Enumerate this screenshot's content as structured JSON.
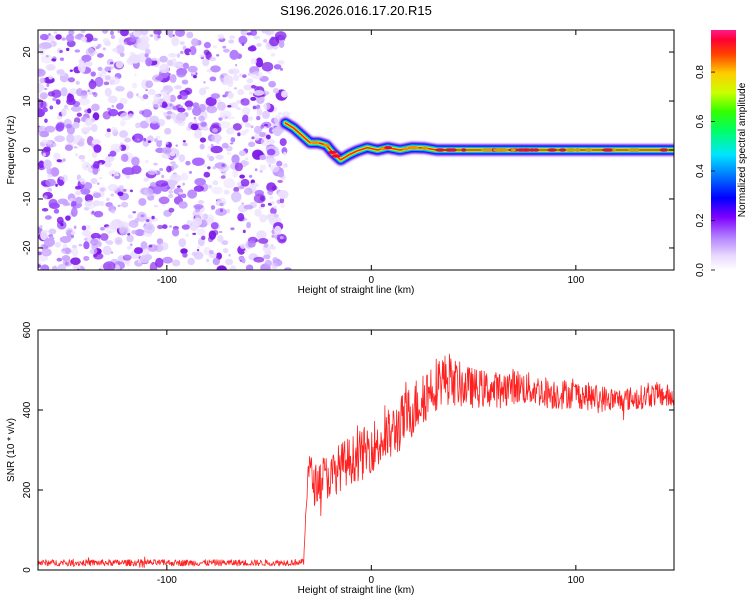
{
  "title": "S196.2026.016.17.20.R15",
  "chart_data": [
    {
      "type": "heatmap",
      "name": "spectrogram",
      "xlabel": "Height of straight line (km)",
      "ylabel": "Frequency (Hz)",
      "xlim": [
        -163,
        148
      ],
      "ylim": [
        -24.5,
        24.5
      ],
      "xticks": [
        -100,
        0,
        100
      ],
      "yticks": [
        -20,
        -10,
        0,
        10,
        20
      ],
      "noise_region_x": [
        -163,
        -42
      ],
      "ridge": [
        {
          "x": -42,
          "y": 5.5
        },
        {
          "x": -38,
          "y": 4.5
        },
        {
          "x": -34,
          "y": 3.0
        },
        {
          "x": -30,
          "y": 1.5
        },
        {
          "x": -26,
          "y": 1.5
        },
        {
          "x": -22,
          "y": 1.0
        },
        {
          "x": -19,
          "y": -0.5
        },
        {
          "x": -15,
          "y": -2.0
        },
        {
          "x": -11,
          "y": -1.0
        },
        {
          "x": -7,
          "y": -0.2
        },
        {
          "x": -2,
          "y": 0.5
        },
        {
          "x": 3,
          "y": 0.0
        },
        {
          "x": 8,
          "y": 0.5
        },
        {
          "x": 14,
          "y": 0.0
        },
        {
          "x": 20,
          "y": 0.5
        },
        {
          "x": 26,
          "y": 0.4
        },
        {
          "x": 32,
          "y": 0.0
        },
        {
          "x": 38,
          "y": 0.0
        },
        {
          "x": 148,
          "y": 0.0
        }
      ],
      "colorbar": {
        "label": "Normalized spectral amplitude",
        "range": [
          0,
          0.97
        ],
        "ticks": [
          0.0,
          0.2,
          0.4,
          0.6,
          0.8
        ],
        "tick_labels": [
          "0.0",
          "0.2",
          "0.4",
          "0.6",
          "0.8"
        ],
        "colors": [
          "#ffffff",
          "#d8b8ff",
          "#8a2be2",
          "#0000ff",
          "#00e5ff",
          "#00ff00",
          "#ffff00",
          "#ff8000",
          "#ff0000",
          "#ff1a8c"
        ]
      }
    },
    {
      "type": "line",
      "name": "snr",
      "xlabel": "Height of straight line (km)",
      "ylabel": "SNR (10 * v/v)",
      "xlim": [
        -163,
        148
      ],
      "ylim": [
        0,
        600
      ],
      "xticks": [
        -100,
        0,
        100
      ],
      "yticks": [
        0,
        200,
        400,
        600
      ],
      "series": [
        {
          "name": "SNR",
          "color": "#ff0000",
          "x": [
            -163,
            -130,
            -100,
            -70,
            -45,
            -33,
            -31,
            -28,
            -24,
            -20,
            -16,
            -12,
            -8,
            -4,
            0,
            5,
            10,
            15,
            20,
            25,
            30,
            35,
            40,
            45,
            50,
            60,
            70,
            80,
            90,
            100,
            110,
            120,
            130,
            140,
            148
          ],
          "y": [
            18,
            18,
            18,
            18,
            18,
            20,
            270,
            210,
            235,
            230,
            255,
            270,
            280,
            290,
            310,
            320,
            340,
            370,
            400,
            430,
            460,
            480,
            470,
            460,
            455,
            450,
            460,
            450,
            440,
            440,
            430,
            425,
            430,
            440,
            430
          ],
          "noise": [
            8,
            8,
            8,
            8,
            8,
            8,
            50,
            50,
            55,
            55,
            60,
            60,
            60,
            65,
            65,
            70,
            70,
            70,
            70,
            70,
            70,
            65,
            60,
            55,
            50,
            45,
            45,
            40,
            40,
            35,
            35,
            30,
            30,
            30,
            30
          ]
        }
      ]
    }
  ]
}
